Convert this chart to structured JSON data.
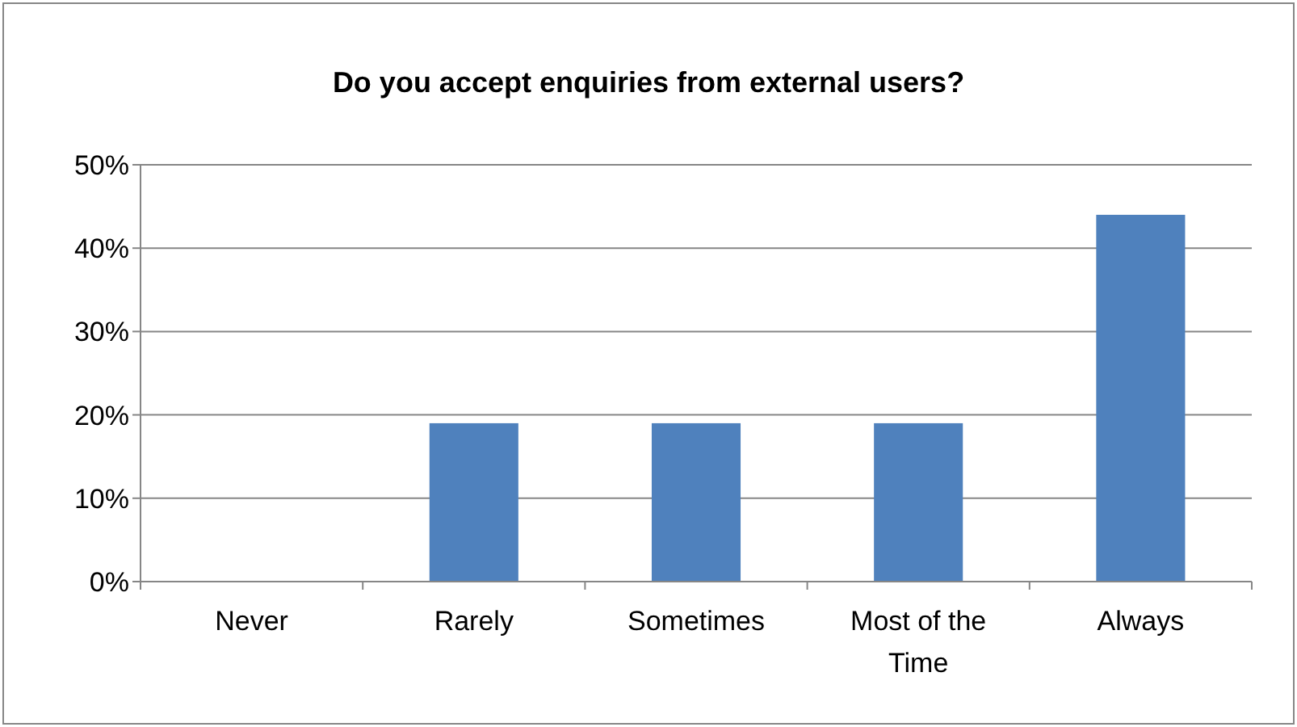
{
  "chart_data": {
    "type": "bar",
    "title": "Do you accept enquiries from external users?",
    "categories": [
      "Never",
      "Rarely",
      "Sometimes",
      "Most of the Time",
      "Always"
    ],
    "values": [
      0,
      19,
      19,
      19,
      44
    ],
    "color": "#4f81bd",
    "ylim": [
      0,
      50
    ],
    "yticks": [
      {
        "value": 0,
        "label": "0%"
      },
      {
        "value": 10,
        "label": "10%"
      },
      {
        "value": 20,
        "label": "20%"
      },
      {
        "value": 30,
        "label": "30%"
      },
      {
        "value": 40,
        "label": "40%"
      },
      {
        "value": 50,
        "label": "50%"
      }
    ],
    "grid": "y"
  }
}
